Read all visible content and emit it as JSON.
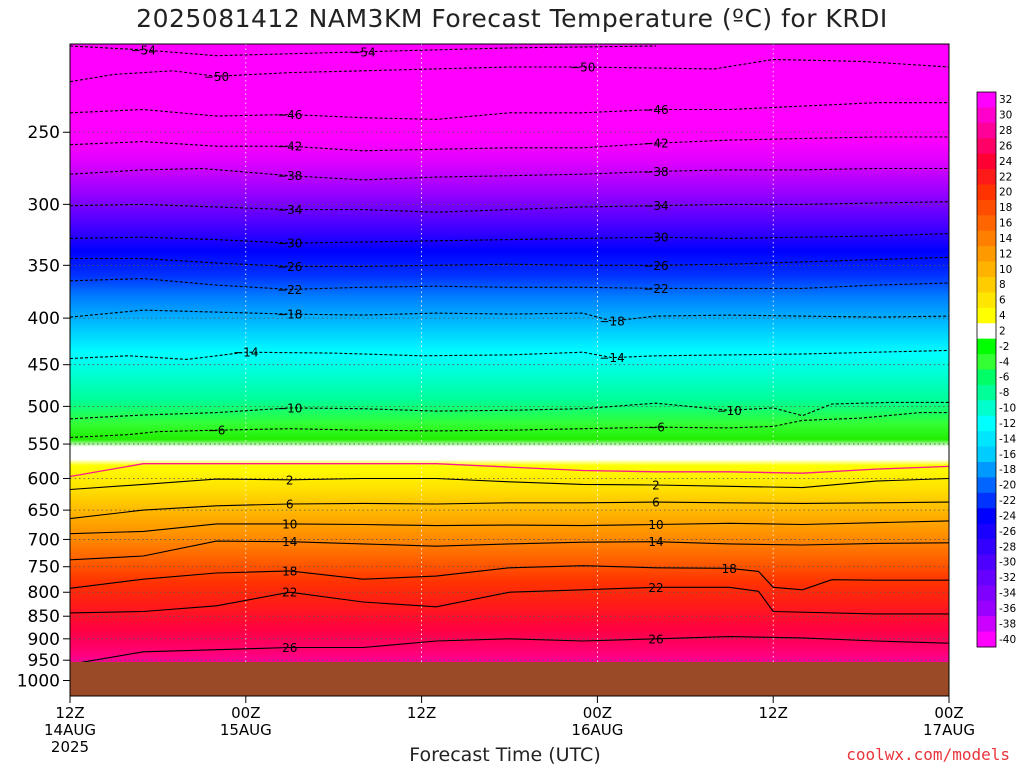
{
  "chart_data": {
    "type": "heatmap",
    "title": "2025081412 NAM3KM Forecast Temperature (ºC) for KRDI",
    "xlabel": "Forecast Time (UTC)",
    "ylabel": "",
    "credit": "coolwx.com/models",
    "y_axis": {
      "quantity": "pressure (hPa)",
      "scale": "log, inverted",
      "range": [
        1040,
        200
      ],
      "ticks": [
        "250",
        "300",
        "350",
        "400",
        "450",
        "500",
        "550",
        "600",
        "650",
        "700",
        "750",
        "800",
        "850",
        "900",
        "950",
        "1000"
      ]
    },
    "x_axis": {
      "range_hours": [
        0,
        60
      ],
      "ticks": [
        {
          "hour": 0,
          "line1": "12Z",
          "line2": "14AUG",
          "line3": "2025"
        },
        {
          "hour": 12,
          "line1": "00Z",
          "line2": "15AUG",
          "line3": ""
        },
        {
          "hour": 24,
          "line1": "12Z",
          "line2": "",
          "line3": ""
        },
        {
          "hour": 36,
          "line1": "00Z",
          "line2": "16AUG",
          "line3": ""
        },
        {
          "hour": 48,
          "line1": "12Z",
          "line2": "",
          "line3": ""
        },
        {
          "hour": 60,
          "line1": "00Z",
          "line2": "17AUG",
          "line3": ""
        }
      ]
    },
    "ground_pressure_hPa": 962,
    "grid": "dotted",
    "colorbar": {
      "placement": "right",
      "labels": [
        "32",
        "30",
        "28",
        "26",
        "24",
        "22",
        "20",
        "18",
        "16",
        "14",
        "12",
        "10",
        "8",
        "6",
        "4",
        "2",
        "-2",
        "-4",
        "-6",
        "-8",
        "-10",
        "-12",
        "-14",
        "-16",
        "-18",
        "-20",
        "-22",
        "-24",
        "-26",
        "-28",
        "-30",
        "-32",
        "-34",
        "-36",
        "-38",
        "-40"
      ],
      "colors": [
        "#ff00ff",
        "#ff00cc",
        "#ff0099",
        "#ff0066",
        "#ff0033",
        "#ff1a1a",
        "#ff3300",
        "#ff4d00",
        "#ff6600",
        "#ff8000",
        "#ff9900",
        "#ffb300",
        "#ffcc00",
        "#ffe600",
        "#ffff00",
        "#ffffff",
        "#00ff00",
        "#33ff33",
        "#00ff66",
        "#00ff99",
        "#00ffcc",
        "#00ffff",
        "#00e6ff",
        "#00ccff",
        "#0099ff",
        "#0066ff",
        "#0033ff",
        "#0000ff",
        "#1a00ff",
        "#3300ff",
        "#4d00ff",
        "#6600ff",
        "#8000ff",
        "#9900ff",
        "#cc00ff",
        "#ff00ff"
      ]
    },
    "contours": [
      {
        "label": "-54",
        "points": [
          [
            0,
            201
          ],
          [
            5,
            203
          ],
          [
            10,
            206
          ],
          [
            20,
            204
          ],
          [
            30,
            202
          ],
          [
            40,
            201
          ]
        ]
      },
      {
        "label": "-50",
        "points": [
          [
            0,
            220
          ],
          [
            3,
            216
          ],
          [
            7,
            214
          ],
          [
            10,
            217
          ],
          [
            15,
            215
          ],
          [
            20,
            214
          ],
          [
            25,
            213
          ],
          [
            30,
            212
          ],
          [
            35,
            212
          ],
          [
            44,
            213
          ],
          [
            48,
            208
          ],
          [
            54,
            209
          ],
          [
            60,
            212
          ]
        ]
      },
      {
        "label": "-46",
        "points": [
          [
            0,
            238
          ],
          [
            5,
            236
          ],
          [
            10,
            240
          ],
          [
            15,
            239
          ],
          [
            20,
            241
          ],
          [
            25,
            242
          ],
          [
            30,
            238
          ],
          [
            35,
            238
          ],
          [
            40,
            236
          ],
          [
            45,
            236
          ],
          [
            50,
            234
          ],
          [
            55,
            232
          ],
          [
            60,
            232
          ]
        ]
      },
      {
        "label": "-42",
        "points": [
          [
            0,
            258
          ],
          [
            5,
            256
          ],
          [
            10,
            259
          ],
          [
            15,
            259
          ],
          [
            20,
            262
          ],
          [
            25,
            261
          ],
          [
            30,
            260
          ],
          [
            35,
            260
          ],
          [
            40,
            257
          ],
          [
            45,
            255
          ],
          [
            50,
            254
          ],
          [
            55,
            253
          ],
          [
            60,
            253
          ]
        ]
      },
      {
        "label": "-38",
        "points": [
          [
            0,
            278
          ],
          [
            5,
            275
          ],
          [
            9,
            274
          ],
          [
            15,
            279
          ],
          [
            20,
            282
          ],
          [
            25,
            280
          ],
          [
            30,
            279
          ],
          [
            35,
            278
          ],
          [
            40,
            276
          ],
          [
            45,
            275
          ],
          [
            50,
            275
          ],
          [
            55,
            274
          ],
          [
            60,
            274
          ]
        ]
      },
      {
        "label": "-34",
        "points": [
          [
            0,
            301
          ],
          [
            5,
            300
          ],
          [
            10,
            302
          ],
          [
            15,
            304
          ],
          [
            20,
            304
          ],
          [
            25,
            306
          ],
          [
            30,
            304
          ],
          [
            35,
            302
          ],
          [
            40,
            301
          ],
          [
            45,
            300
          ],
          [
            50,
            300
          ],
          [
            55,
            299
          ],
          [
            60,
            298
          ]
        ]
      },
      {
        "label": "-30",
        "points": [
          [
            0,
            327
          ],
          [
            5,
            326
          ],
          [
            10,
            328
          ],
          [
            15,
            331
          ],
          [
            20,
            330
          ],
          [
            25,
            329
          ],
          [
            30,
            328
          ],
          [
            35,
            327
          ],
          [
            40,
            326
          ],
          [
            45,
            327
          ],
          [
            50,
            326
          ],
          [
            55,
            325
          ],
          [
            60,
            323
          ]
        ]
      },
      {
        "label": "-26",
        "points": [
          [
            0,
            344
          ],
          [
            5,
            344
          ],
          [
            10,
            348
          ],
          [
            15,
            351
          ],
          [
            20,
            351
          ],
          [
            25,
            350
          ],
          [
            30,
            349
          ],
          [
            35,
            350
          ],
          [
            40,
            350
          ],
          [
            45,
            349
          ],
          [
            50,
            347
          ],
          [
            55,
            345
          ],
          [
            60,
            343
          ]
        ]
      },
      {
        "label": "-22",
        "points": [
          [
            0,
            364
          ],
          [
            5,
            362
          ],
          [
            10,
            368
          ],
          [
            15,
            372
          ],
          [
            20,
            370
          ],
          [
            25,
            369
          ],
          [
            30,
            370
          ],
          [
            35,
            370
          ],
          [
            40,
            371
          ],
          [
            45,
            371
          ],
          [
            50,
            371
          ],
          [
            55,
            368
          ],
          [
            60,
            366
          ]
        ]
      },
      {
        "label": "-18",
        "points": [
          [
            0,
            399
          ],
          [
            5,
            392
          ],
          [
            10,
            394
          ],
          [
            15,
            396
          ],
          [
            20,
            397
          ],
          [
            25,
            395
          ],
          [
            30,
            396
          ],
          [
            35,
            395
          ],
          [
            37,
            403
          ],
          [
            40,
            398
          ],
          [
            45,
            397
          ],
          [
            50,
            398
          ],
          [
            55,
            399
          ],
          [
            60,
            398
          ]
        ]
      },
      {
        "label": "-14",
        "points": [
          [
            0,
            443
          ],
          [
            4,
            440
          ],
          [
            8,
            444
          ],
          [
            12,
            436
          ],
          [
            18,
            437
          ],
          [
            24,
            440
          ],
          [
            30,
            439
          ],
          [
            35,
            436
          ],
          [
            37,
            442
          ],
          [
            40,
            440
          ],
          [
            45,
            439
          ],
          [
            50,
            438
          ],
          [
            55,
            436
          ],
          [
            60,
            434
          ]
        ]
      },
      {
        "label": "-10",
        "points": [
          [
            0,
            516
          ],
          [
            5,
            511
          ],
          [
            10,
            508
          ],
          [
            15,
            502
          ],
          [
            20,
            503
          ],
          [
            25,
            506
          ],
          [
            30,
            505
          ],
          [
            35,
            503
          ],
          [
            40,
            496
          ],
          [
            45,
            505
          ],
          [
            48,
            502
          ],
          [
            50,
            512
          ],
          [
            52,
            497
          ],
          [
            56,
            495
          ],
          [
            60,
            495
          ]
        ]
      },
      {
        "label": "-6",
        "points": [
          [
            0,
            541
          ],
          [
            4,
            537
          ],
          [
            6,
            533
          ],
          [
            10,
            531
          ],
          [
            15,
            529
          ],
          [
            20,
            531
          ],
          [
            25,
            532
          ],
          [
            30,
            531
          ],
          [
            35,
            529
          ],
          [
            40,
            527
          ],
          [
            45,
            528
          ],
          [
            48,
            526
          ],
          [
            50,
            518
          ],
          [
            54,
            515
          ],
          [
            58,
            508
          ],
          [
            60,
            508
          ]
        ]
      },
      {
        "label": "2",
        "points": [
          [
            0,
            617
          ],
          [
            5,
            609
          ],
          [
            10,
            601
          ],
          [
            15,
            602
          ],
          [
            20,
            600
          ],
          [
            25,
            600
          ],
          [
            30,
            605
          ],
          [
            35,
            609
          ],
          [
            40,
            610
          ],
          [
            45,
            612
          ],
          [
            50,
            614
          ],
          [
            55,
            604
          ],
          [
            60,
            600
          ]
        ]
      },
      {
        "label": "6",
        "points": [
          [
            0,
            664
          ],
          [
            5,
            650
          ],
          [
            10,
            643
          ],
          [
            15,
            640
          ],
          [
            20,
            639
          ],
          [
            25,
            640
          ],
          [
            30,
            638
          ],
          [
            35,
            638
          ],
          [
            40,
            637
          ],
          [
            45,
            638
          ],
          [
            50,
            639
          ],
          [
            55,
            638
          ],
          [
            60,
            637
          ]
        ]
      },
      {
        "label": "10",
        "points": [
          [
            0,
            690
          ],
          [
            5,
            686
          ],
          [
            10,
            673
          ],
          [
            15,
            673
          ],
          [
            20,
            674
          ],
          [
            25,
            676
          ],
          [
            30,
            675
          ],
          [
            35,
            676
          ],
          [
            40,
            674
          ],
          [
            45,
            672
          ],
          [
            50,
            674
          ],
          [
            55,
            671
          ],
          [
            60,
            668
          ]
        ]
      },
      {
        "label": "14",
        "points": [
          [
            0,
            737
          ],
          [
            5,
            730
          ],
          [
            10,
            703
          ],
          [
            15,
            704
          ],
          [
            20,
            708
          ],
          [
            25,
            712
          ],
          [
            30,
            708
          ],
          [
            35,
            705
          ],
          [
            40,
            704
          ],
          [
            45,
            708
          ],
          [
            50,
            710
          ],
          [
            55,
            707
          ],
          [
            60,
            706
          ]
        ]
      },
      {
        "label": "18",
        "points": [
          [
            0,
            792
          ],
          [
            5,
            774
          ],
          [
            10,
            762
          ],
          [
            15,
            758
          ],
          [
            20,
            774
          ],
          [
            25,
            768
          ],
          [
            30,
            752
          ],
          [
            35,
            748
          ],
          [
            40,
            752
          ],
          [
            45,
            753
          ],
          [
            47,
            759
          ],
          [
            48,
            790
          ],
          [
            50,
            795
          ],
          [
            52,
            775
          ],
          [
            55,
            776
          ],
          [
            60,
            776
          ]
        ]
      },
      {
        "label": "22",
        "points": [
          [
            0,
            843
          ],
          [
            5,
            840
          ],
          [
            10,
            828
          ],
          [
            15,
            800
          ],
          [
            20,
            820
          ],
          [
            25,
            830
          ],
          [
            30,
            800
          ],
          [
            35,
            795
          ],
          [
            40,
            790
          ],
          [
            45,
            790
          ],
          [
            47,
            798
          ],
          [
            48,
            840
          ],
          [
            55,
            845
          ],
          [
            60,
            845
          ]
        ]
      },
      {
        "label": "26",
        "points": [
          [
            0,
            960
          ],
          [
            5,
            930
          ],
          [
            10,
            925
          ],
          [
            15,
            920
          ],
          [
            20,
            920
          ],
          [
            25,
            905
          ],
          [
            30,
            900
          ],
          [
            35,
            905
          ],
          [
            40,
            900
          ],
          [
            45,
            895
          ],
          [
            50,
            898
          ],
          [
            55,
            905
          ],
          [
            60,
            910
          ]
        ]
      }
    ],
    "freezing_line": {
      "label": "0",
      "points": [
        [
          0,
          597
        ],
        [
          5,
          578
        ],
        [
          10,
          578
        ],
        [
          15,
          578
        ],
        [
          20,
          578
        ],
        [
          25,
          578
        ],
        [
          30,
          583
        ],
        [
          35,
          588
        ],
        [
          40,
          590
        ],
        [
          45,
          590
        ],
        [
          50,
          592
        ],
        [
          55,
          586
        ],
        [
          60,
          582
        ]
      ]
    }
  }
}
